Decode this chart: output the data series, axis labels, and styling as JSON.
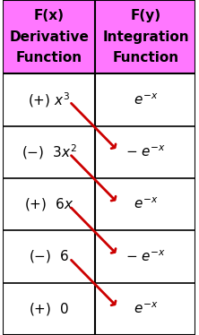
{
  "figsize": [
    2.22,
    3.74
  ],
  "dpi": 100,
  "header_bg": "#FF77FF",
  "row_bg": "#FFFFFF",
  "border_color": "#000000",
  "arrow_color": "#CC0000",
  "header_left": [
    "F(x)",
    "Derivative",
    "Function"
  ],
  "header_right": [
    "F(y)",
    "Integration",
    "Function"
  ],
  "left_cells": [
    "(+) x³",
    "(−)   3x²",
    "(+)   6x",
    "(−)   6",
    "(+)   0"
  ],
  "right_cells": [
    "e⁻ˣ",
    "− e⁻ˣ",
    "e⁻ˣ",
    "− e⁻ˣ",
    "e⁻ˣ"
  ],
  "left_signs": [
    "+",
    "-",
    "+",
    "-",
    "+"
  ],
  "n_rows": 5,
  "header_fontsize": 11,
  "cell_fontsize": 11,
  "text_color": "#000000",
  "header_text_color": "#000000"
}
